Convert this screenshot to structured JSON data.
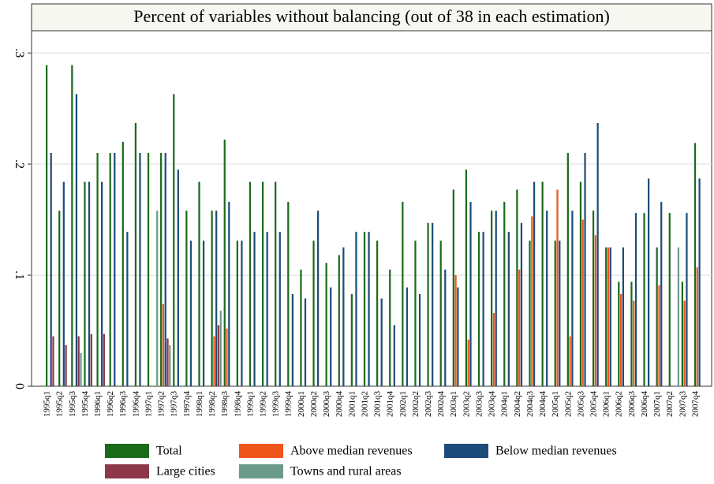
{
  "chart_data": {
    "type": "bar",
    "title": "Percent of variables without balancing (out of 38 in each estimation)",
    "categories": [
      "1995q1",
      "1995q2",
      "1995q3",
      "1995q4",
      "1996q1",
      "1996q2",
      "1996q3",
      "1996q4",
      "1997q1",
      "1997q2",
      "1997q3",
      "1997q4",
      "1998q1",
      "1998q2",
      "1998q3",
      "1998q4",
      "1999q1",
      "1999q2",
      "1999q3",
      "1999q4",
      "2000q1",
      "2000q2",
      "2000q3",
      "2000q4",
      "2001q1",
      "2001q2",
      "2001q3",
      "2001q4",
      "2002q1",
      "2002q2",
      "2002q3",
      "2002q4",
      "2003q1",
      "2003q2",
      "2003q3",
      "2003q4",
      "2004q1",
      "2004q2",
      "2004q3",
      "2004q4",
      "2005q1",
      "2005q2",
      "2005q3",
      "2005q4",
      "2006q1",
      "2006q2",
      "2006q3",
      "2006q4",
      "2007q1",
      "2007q2",
      "2007q3",
      "2007q4"
    ],
    "series": [
      {
        "name": "Total",
        "color": "#1b6b1b",
        "values": [
          0.289,
          0.158,
          0.289,
          0.184,
          0.21,
          0.21,
          0.22,
          0.237,
          0.21,
          0.21,
          0.263,
          0.158,
          0.184,
          0.158,
          0.222,
          0.131,
          0.184,
          0.184,
          0.184,
          0.166,
          0.105,
          0.131,
          0.111,
          0.118,
          0.083,
          0.139,
          0.131,
          0.105,
          0.166,
          0.131,
          0.147,
          0.131,
          0.177,
          0.195,
          0.139,
          0.158,
          0.166,
          0.177,
          0.131,
          0.184,
          0.131,
          0.21,
          0.184,
          0.158,
          0.125,
          0.094,
          0.094,
          0.156,
          0.125,
          0.156,
          0.094,
          0.219
        ]
      },
      {
        "name": "Above median revenues",
        "color": "#f0561c",
        "values": [
          null,
          null,
          null,
          null,
          null,
          null,
          null,
          null,
          null,
          0.074,
          null,
          null,
          null,
          0.045,
          0.052,
          null,
          null,
          null,
          null,
          null,
          null,
          null,
          null,
          null,
          null,
          null,
          null,
          null,
          null,
          null,
          null,
          null,
          0.1,
          0.042,
          null,
          0.066,
          null,
          0.105,
          0.153,
          null,
          0.177,
          0.045,
          0.15,
          0.136,
          0.125,
          0.083,
          0.077,
          null,
          0.091,
          null,
          0.077,
          0.107
        ]
      },
      {
        "name": "Below median revenues",
        "color": "#1d4c7a",
        "values": [
          0.21,
          0.184,
          0.263,
          0.184,
          0.184,
          0.21,
          0.139,
          0.21,
          null,
          0.21,
          0.195,
          0.131,
          0.131,
          0.158,
          0.166,
          0.131,
          0.139,
          0.139,
          0.139,
          0.083,
          0.079,
          0.158,
          0.089,
          0.125,
          0.139,
          0.139,
          0.079,
          0.055,
          0.089,
          0.083,
          0.147,
          0.105,
          0.089,
          0.166,
          0.139,
          0.158,
          0.139,
          0.147,
          0.184,
          0.158,
          0.131,
          0.158,
          0.21,
          0.237,
          0.125,
          0.125,
          0.156,
          0.187,
          0.166,
          null,
          0.156,
          0.187
        ]
      },
      {
        "name": "Large cities",
        "color": "#8c3848",
        "values": [
          0.045,
          0.037,
          0.045,
          0.047,
          0.047,
          null,
          null,
          null,
          null,
          0.043,
          null,
          null,
          null,
          0.055,
          null,
          null,
          null,
          null,
          null,
          null,
          null,
          null,
          null,
          null,
          null,
          null,
          null,
          null,
          null,
          null,
          null,
          null,
          null,
          null,
          null,
          null,
          null,
          null,
          null,
          null,
          null,
          null,
          null,
          null,
          null,
          null,
          null,
          null,
          null,
          null,
          null,
          null
        ]
      },
      {
        "name": "Towns and rural areas",
        "color": "#6c9a8a",
        "values": [
          null,
          null,
          0.03,
          null,
          null,
          null,
          null,
          null,
          0.158,
          0.037,
          null,
          null,
          null,
          0.068,
          null,
          null,
          null,
          null,
          null,
          null,
          null,
          null,
          null,
          null,
          null,
          null,
          null,
          null,
          null,
          null,
          null,
          null,
          null,
          null,
          null,
          null,
          null,
          null,
          null,
          null,
          null,
          null,
          null,
          null,
          null,
          null,
          null,
          null,
          null,
          0.125,
          null,
          null
        ]
      }
    ],
    "ylim": [
      0,
      0.32
    ],
    "yticks": [
      0,
      {
        "value": 0.1,
        "label": ".1"
      },
      {
        "value": 0.2,
        "label": ".2"
      },
      {
        "value": 0.3,
        "label": ".3"
      }
    ],
    "grid": true
  }
}
